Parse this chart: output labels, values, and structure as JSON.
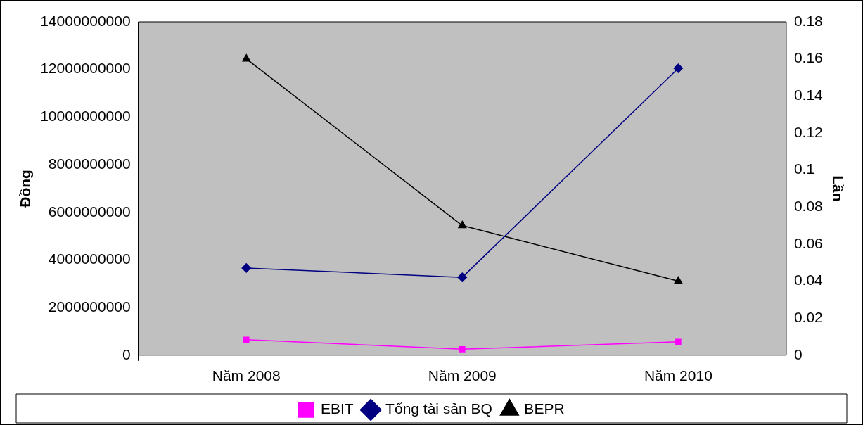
{
  "chart_data": {
    "type": "line",
    "ylabel": "Đồng",
    "y2label": "Lần",
    "categories": [
      "Năm 2008",
      "Năm 2009",
      "Năm 2010"
    ],
    "series": [
      {
        "name": "EBIT",
        "color": "#ff00ff",
        "values": [
          650000000,
          250000000,
          560000000
        ],
        "marker": "square"
      },
      {
        "name": "Tổng tài sản BQ",
        "color": "#000080",
        "values": [
          3660000000,
          3270000000,
          12050000000
        ],
        "marker": "diamond"
      },
      {
        "name": "BEPR",
        "color": "#000000",
        "values": [
          0.16,
          0.07,
          0.04
        ],
        "axis": "y2",
        "marker": "triangle"
      }
    ],
    "ylim": [
      0,
      14000000000
    ],
    "yticks": [
      0,
      2000000000,
      4000000000,
      6000000000,
      8000000000,
      10000000000,
      12000000000,
      14000000000
    ],
    "y2lim": [
      0,
      0.18
    ],
    "y2ticks": [
      0,
      0.02,
      0.04,
      0.06,
      0.08,
      0.1,
      0.12,
      0.14,
      0.16,
      0.18
    ],
    "grid": false,
    "legend": "bottom",
    "line_style": "solid"
  }
}
